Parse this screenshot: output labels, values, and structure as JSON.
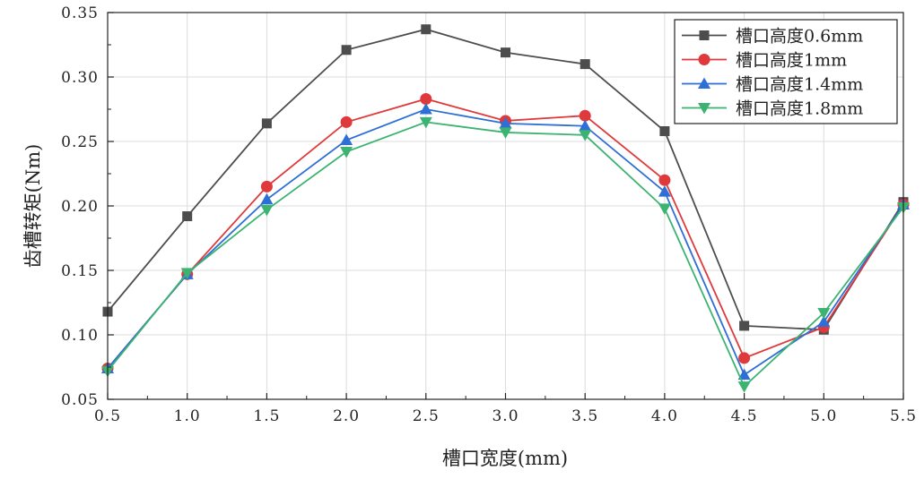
{
  "chart_data": {
    "type": "line",
    "title": "",
    "xlabel": "槽口宽度(mm)",
    "ylabel": "齿槽转矩(Nm)",
    "xlim": [
      0.5,
      5.5
    ],
    "ylim": [
      0.05,
      0.35
    ],
    "x": [
      0.5,
      1.0,
      1.5,
      2.0,
      2.5,
      3.0,
      3.5,
      4.0,
      4.5,
      5.0,
      5.5
    ],
    "x_ticks": [
      "0.5",
      "1.0",
      "1.5",
      "2.0",
      "2.5",
      "3.0",
      "3.5",
      "4.0",
      "4.5",
      "5.0",
      "5.5"
    ],
    "y_ticks": [
      "0.05",
      "0.10",
      "0.15",
      "0.20",
      "0.25",
      "0.30",
      "0.35"
    ],
    "grid": true,
    "legend_position": "top-right",
    "series": [
      {
        "name": "槽口高度0.6mm",
        "color": "#4d4d4d",
        "marker": "square",
        "values": [
          0.118,
          0.192,
          0.264,
          0.321,
          0.337,
          0.319,
          0.31,
          0.258,
          0.107,
          0.104,
          0.203
        ]
      },
      {
        "name": "槽口高度1mm",
        "color": "#e0393b",
        "marker": "circle",
        "values": [
          0.074,
          0.147,
          0.215,
          0.265,
          0.283,
          0.266,
          0.27,
          0.22,
          0.082,
          0.106,
          0.201
        ]
      },
      {
        "name": "槽口高度1.4mm",
        "color": "#2e6fd6",
        "marker": "triangle-up",
        "values": [
          0.074,
          0.147,
          0.205,
          0.251,
          0.275,
          0.264,
          0.262,
          0.211,
          0.069,
          0.11,
          0.201
        ]
      },
      {
        "name": "槽口高度1.8mm",
        "color": "#3cb371",
        "marker": "triangle-down",
        "values": [
          0.072,
          0.148,
          0.197,
          0.242,
          0.265,
          0.257,
          0.255,
          0.198,
          0.06,
          0.117,
          0.199
        ]
      }
    ]
  }
}
